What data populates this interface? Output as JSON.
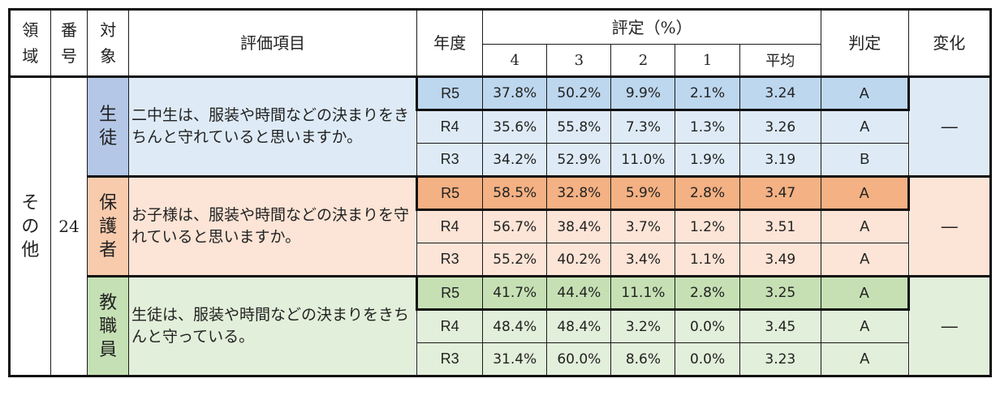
{
  "header": {
    "area": "領域",
    "number": "番号",
    "target": "対象",
    "item": "評価項目",
    "year": "年度",
    "rating_group": "評定（%）",
    "rating_cols": [
      "4",
      "3",
      "2",
      "1",
      "平均"
    ],
    "judgement": "判定",
    "change": "変化"
  },
  "area": "その他",
  "number": "24",
  "groups": [
    {
      "target": "生徒",
      "item": "二中生は、服装や時間などの決まりをきちんと守れていると思いますか。",
      "colors": {
        "target": "#b4c7e7",
        "row": "#deebf7",
        "highlight": "#bdd7ee"
      },
      "change": "—",
      "rows": [
        {
          "year": "R5",
          "p4": "37.8%",
          "p3": "50.2%",
          "p2": "9.9%",
          "p1": "2.1%",
          "avg": "3.24",
          "judge": "A"
        },
        {
          "year": "R4",
          "p4": "35.6%",
          "p3": "55.8%",
          "p2": "7.3%",
          "p1": "1.3%",
          "avg": "3.26",
          "judge": "A"
        },
        {
          "year": "R3",
          "p4": "34.2%",
          "p3": "52.9%",
          "p2": "11.0%",
          "p1": "1.9%",
          "avg": "3.19",
          "judge": "B"
        }
      ]
    },
    {
      "target": "保護者",
      "item": "お子様は、服装や時間などの決まりを守れていると思いますか。",
      "colors": {
        "target": "#f8cbad",
        "row": "#fce4d6",
        "highlight": "#f4b183"
      },
      "change": "—",
      "rows": [
        {
          "year": "R5",
          "p4": "58.5%",
          "p3": "32.8%",
          "p2": "5.9%",
          "p1": "2.8%",
          "avg": "3.47",
          "judge": "A"
        },
        {
          "year": "R4",
          "p4": "56.7%",
          "p3": "38.4%",
          "p2": "3.7%",
          "p1": "1.2%",
          "avg": "3.51",
          "judge": "A"
        },
        {
          "year": "R3",
          "p4": "55.2%",
          "p3": "40.2%",
          "p2": "3.4%",
          "p1": "1.1%",
          "avg": "3.49",
          "judge": "A"
        }
      ]
    },
    {
      "target": "教職員",
      "item": "生徒は、服装や時間などの決まりをきちんと守っている。",
      "colors": {
        "target": "#c5e0b4",
        "row": "#e2efda",
        "highlight": "#c6e0b4"
      },
      "change": "—",
      "rows": [
        {
          "year": "R5",
          "p4": "41.7%",
          "p3": "44.4%",
          "p2": "11.1%",
          "p1": "2.8%",
          "avg": "3.25",
          "judge": "A"
        },
        {
          "year": "R4",
          "p4": "48.4%",
          "p3": "48.4%",
          "p2": "3.2%",
          "p1": "0.0%",
          "avg": "3.45",
          "judge": "A"
        },
        {
          "year": "R3",
          "p4": "31.4%",
          "p3": "60.0%",
          "p2": "8.6%",
          "p1": "0.0%",
          "avg": "3.23",
          "judge": "A"
        }
      ]
    }
  ]
}
